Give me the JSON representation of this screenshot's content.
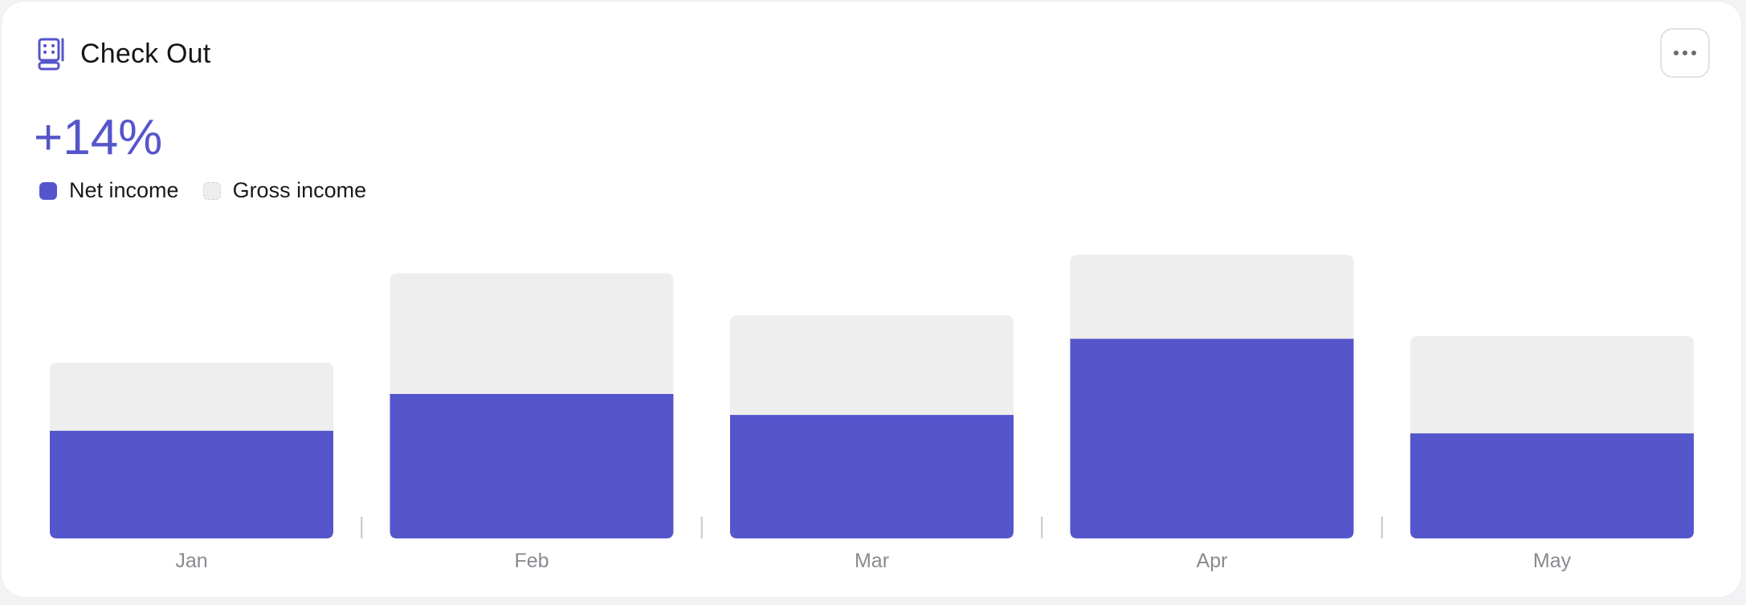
{
  "card": {
    "title": "Check Out",
    "title_icon": "cash-register-icon",
    "menu_icon": "more-horizontal-icon",
    "metric": "+14%"
  },
  "legend": [
    {
      "label": "Net income",
      "color": "#5555cc"
    },
    {
      "label": "Gross income",
      "color": "#eeeeee"
    }
  ],
  "chart_data": {
    "type": "bar",
    "stacked": "overlay",
    "categories": [
      "Jan",
      "Feb",
      "Mar",
      "Apr",
      "May"
    ],
    "series": [
      {
        "name": "Net income",
        "values": [
          41,
          55,
          47,
          76,
          40
        ],
        "color": "#5555cc"
      },
      {
        "name": "Gross income",
        "values": [
          67,
          101,
          85,
          108,
          77
        ],
        "color": "#eeeeee"
      }
    ],
    "ylim": [
      0,
      110
    ],
    "grid": false,
    "legend_position": "top-left"
  }
}
